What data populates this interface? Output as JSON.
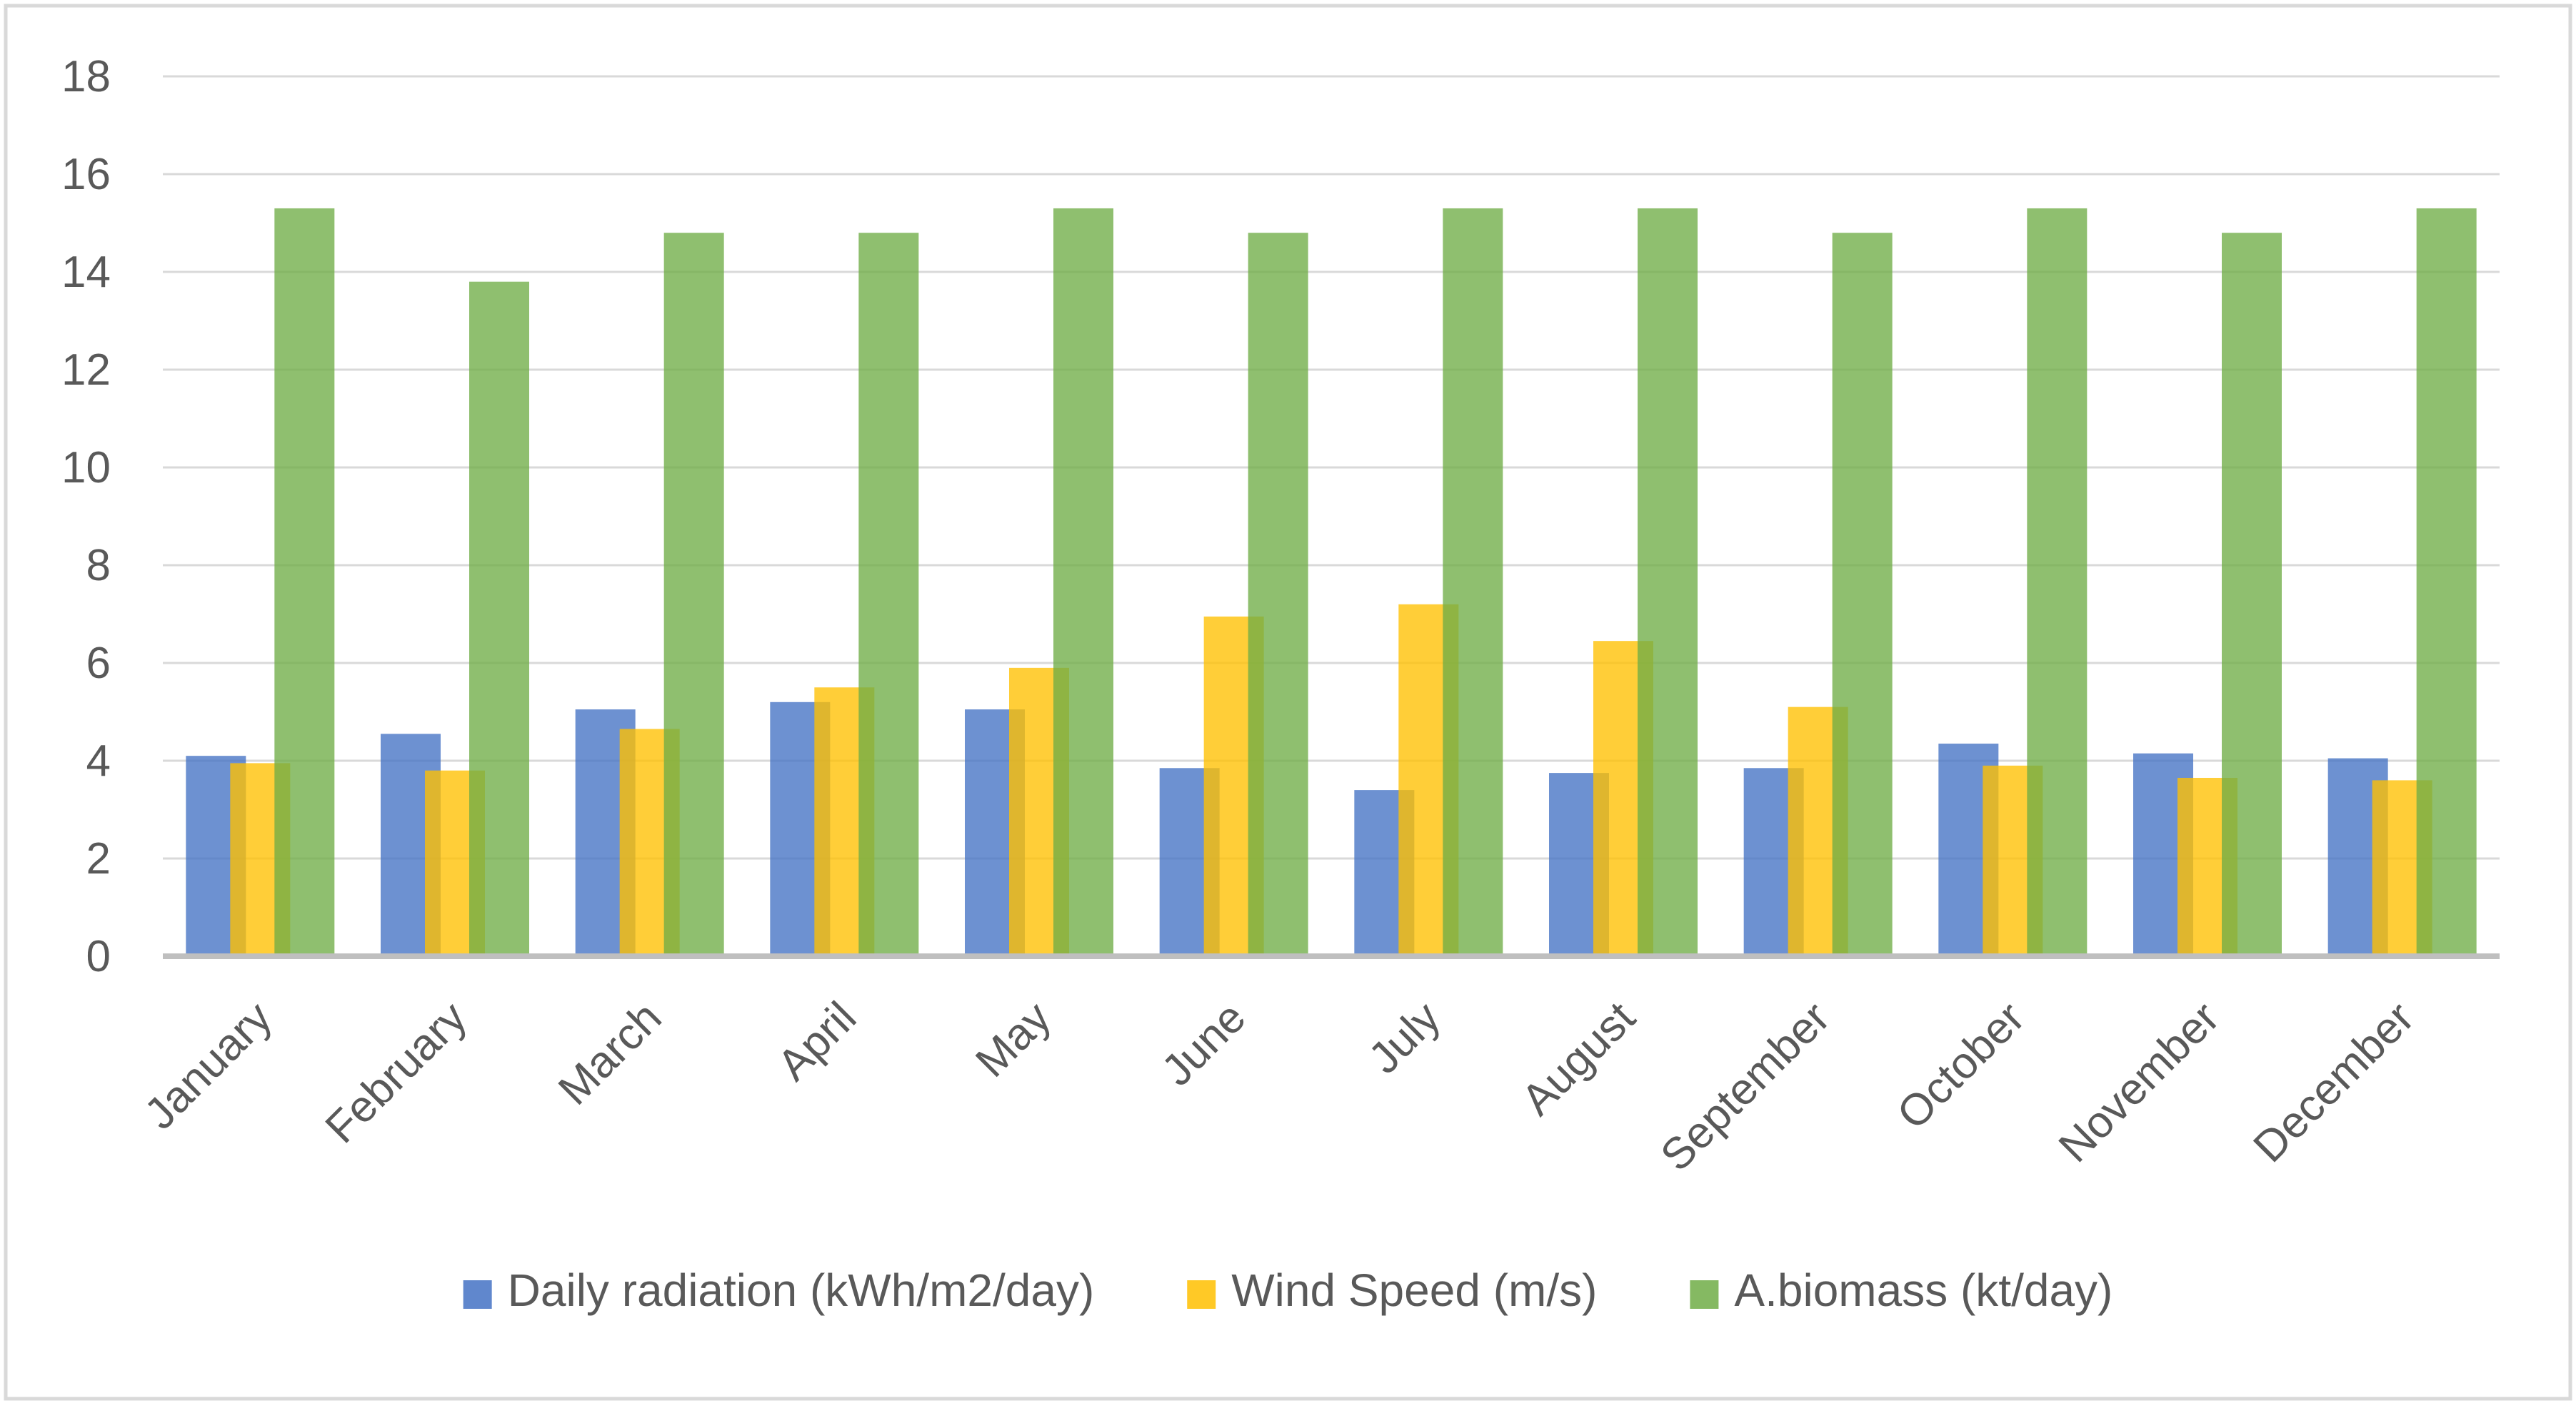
{
  "chart_data": {
    "type": "bar",
    "title": "",
    "xlabel": "",
    "ylabel": "",
    "ylim": [
      0,
      18
    ],
    "yticks": [
      "0",
      "2",
      "4",
      "6",
      "8",
      "10",
      "12",
      "14",
      "16",
      "18"
    ],
    "grid": true,
    "legend_position": "bottom",
    "categories": [
      "January",
      "February",
      "March",
      "April",
      "May",
      "June",
      "July",
      "August",
      "September",
      "October",
      "November",
      "December"
    ],
    "series": [
      {
        "name": "Daily radiation (kWh/m2/day)",
        "color": "#4472C4",
        "values": [
          4.1,
          4.55,
          5.05,
          5.2,
          5.05,
          3.85,
          3.4,
          3.75,
          3.85,
          4.35,
          4.15,
          4.05
        ]
      },
      {
        "name": "Wind Speed (m/s)",
        "color": "#FFC000",
        "values": [
          3.95,
          3.8,
          4.65,
          5.5,
          5.9,
          6.95,
          7.2,
          6.45,
          5.1,
          3.9,
          3.65,
          3.6
        ]
      },
      {
        "name": "A.biomass (kt/day)",
        "color": "#70AD47",
        "values": [
          15.3,
          13.8,
          14.8,
          14.8,
          15.3,
          14.8,
          15.3,
          15.3,
          14.8,
          15.3,
          14.8,
          15.3
        ]
      }
    ]
  }
}
